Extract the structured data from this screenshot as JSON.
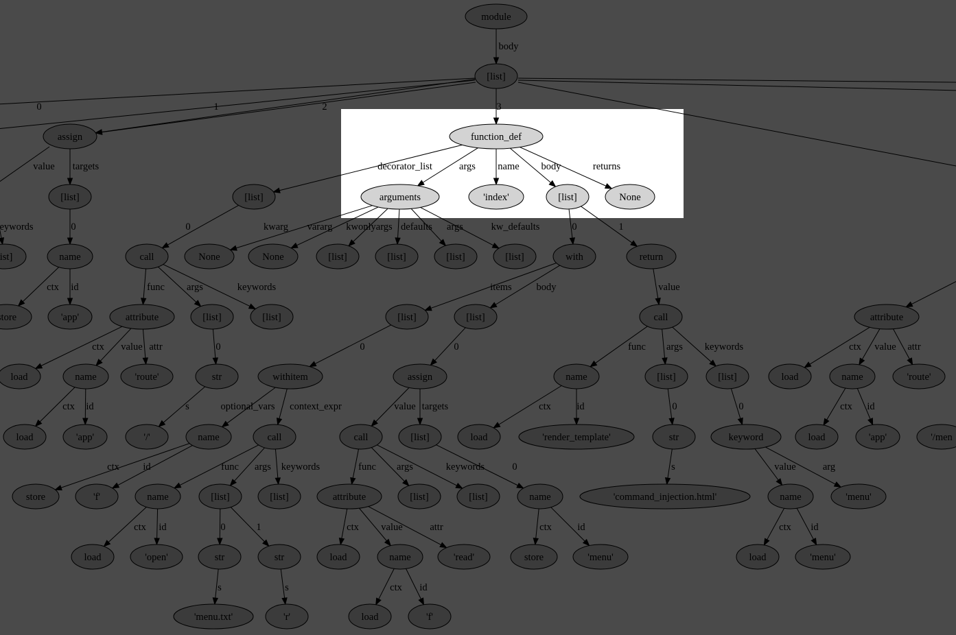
{
  "colors": {
    "background": "#4a4a4a",
    "highlight_panel": "#ffffff",
    "highlight_node": "#d3d3d3",
    "dim_node": "#3b3b3b",
    "stroke": "#000000"
  },
  "nodes": {
    "module": "module",
    "list_top": "[list]",
    "assign0": "assign",
    "function_def": "function_def",
    "list_l": "[list]",
    "list_assign_targets": "[list]",
    "arguments": "arguments",
    "index_str": "'index'",
    "list_body": "[list]",
    "none_returns": "None",
    "list_far_left": "list]",
    "name_app0": "name",
    "call_dec": "call",
    "none_kwarg": "None",
    "none_vararg": "None",
    "list_kwonly": "[list]",
    "list_defaults": "[list]",
    "list_args": "[list]",
    "list_kwdefaults": "[list]",
    "with": "with",
    "return": "return",
    "store0": "store",
    "app0": "'app'",
    "attribute_dec": "attribute",
    "list_dec_args": "[list]",
    "list_dec_kw": "[list]",
    "list_with_items": "[list]",
    "list_with_body": "[list]",
    "call_ret": "call",
    "attribute_r": "attribute",
    "load_a": "load",
    "name_dec": "name",
    "route_a": "'route'",
    "str_slash": "str",
    "withitem": "withitem",
    "assign_w": "assign",
    "name_rt": "name",
    "list_ret_args": "[list]",
    "list_ret_kw": "[list]",
    "load_r1": "load",
    "name_r": "name",
    "route_r": "'route'",
    "load_b": "load",
    "app_b": "'app'",
    "slash": "'/'",
    "name_f": "name",
    "call_open": "call",
    "call_read": "call",
    "list_assign_w_targets": "[list]",
    "load_rt": "load",
    "render_template": "'render_template'",
    "str_html": "str",
    "keyword": "keyword",
    "load_r2": "load",
    "app_r": "'app'",
    "menu_partial": "'/men",
    "store_f": "store",
    "f_id": "'f'",
    "name_open": "name",
    "list_open_args": "[list]",
    "list_open_kw": "[list]",
    "attribute_read": "attribute",
    "list_read_args": "[list]",
    "list_read_kw": "[list]",
    "name_menu_target": "name",
    "html_file": "'command_injection.html'",
    "name_kw_value": "name",
    "menu_arg": "'menu'",
    "load_open": "load",
    "open_str": "'open'",
    "str_menu": "str",
    "str_r": "str",
    "load_read": "load",
    "name_f2": "name",
    "read_str": "'read'",
    "store_menu": "store",
    "menu_id": "'menu'",
    "load_kw": "load",
    "menu_kw_id": "'menu'",
    "menu_txt": "'menu.txt'",
    "r_str": "'r'",
    "load_f2": "load",
    "f2_id": "'f'"
  },
  "edge_labels": {
    "body": "body",
    "zero": "0",
    "one": "1",
    "two": "2",
    "three": "3",
    "value": "value",
    "targets": "targets",
    "keywords": "eywords",
    "decorator_list": "decorator_list",
    "args": "args",
    "name": "name",
    "returns": "returns",
    "kwarg": "kwarg",
    "vararg": "vararg",
    "kwonlyargs": "kwonlyargs",
    "defaults": "defaults",
    "kw_defaults": "kw_defaults",
    "ctx": "ctx",
    "id": "id",
    "func": "func",
    "keywords_full": "keywords",
    "items": "items",
    "attr": "attr",
    "s": "s",
    "optional_vars": "optional_vars",
    "context_expr": "context_expr",
    "arg": "arg"
  }
}
